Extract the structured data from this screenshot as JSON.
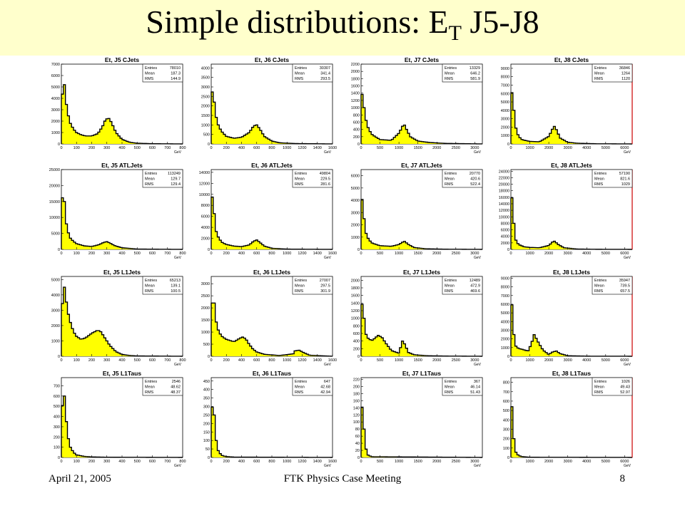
{
  "title": {
    "main": "Simple distributions: E",
    "sub": "T",
    "tail": " J5-J8"
  },
  "footer": {
    "date": "April 21, 2005",
    "center": "FTK Physics Case Meeting",
    "page": "8"
  },
  "colors": {
    "fill": "#ffff00",
    "line": "#000000",
    "bg": "#ffffcc",
    "accent_edge": "#cc0000"
  },
  "chart_data": [
    {
      "type": "area",
      "title": "Et, J5 CJets",
      "entries": "78010",
      "mean": "187.3",
      "rms": "144.9",
      "xlim": [
        0,
        800
      ],
      "ylim": [
        0,
        7000
      ],
      "xticks": [
        0,
        100,
        200,
        300,
        400,
        500,
        600,
        700,
        800
      ],
      "yticks": [
        0,
        1000,
        2000,
        3000,
        4000,
        5000,
        6000,
        7000
      ],
      "xunit": "GeV",
      "x": [
        0,
        10,
        20,
        30,
        40,
        60,
        80,
        100,
        130,
        160,
        200,
        240,
        270,
        290,
        310,
        330,
        360,
        400,
        450,
        500,
        600,
        800
      ],
      "y": [
        300,
        6400,
        5200,
        3800,
        2800,
        1800,
        1300,
        1000,
        800,
        700,
        700,
        900,
        1500,
        2100,
        2300,
        1900,
        1000,
        400,
        150,
        60,
        20,
        0
      ]
    },
    {
      "type": "area",
      "title": "Et, J6 CJets",
      "entries": "30307",
      "mean": "341.4",
      "rms": "293.5",
      "xlim": [
        0,
        1600
      ],
      "ylim": [
        0,
        4200
      ],
      "xticks": [
        0,
        200,
        400,
        600,
        800,
        1000,
        1200,
        1400,
        1600
      ],
      "yticks": [
        0,
        500,
        1000,
        1500,
        2000,
        2500,
        3000,
        3500,
        4000
      ],
      "xunit": "GeV",
      "x": [
        0,
        20,
        40,
        60,
        100,
        150,
        200,
        300,
        400,
        500,
        560,
        600,
        640,
        700,
        800,
        900,
        1100,
        1600
      ],
      "y": [
        200,
        4000,
        2200,
        1500,
        900,
        600,
        400,
        300,
        350,
        600,
        950,
        1000,
        800,
        400,
        150,
        60,
        20,
        0
      ]
    },
    {
      "type": "area",
      "title": "Et, J7 CJets",
      "entries": "13329",
      "mean": "646.2",
      "rms": "581.9",
      "xlim": [
        0,
        3200
      ],
      "ylim": [
        0,
        2200
      ],
      "xticks": [
        0,
        500,
        1000,
        1500,
        2000,
        2500,
        3000
      ],
      "yticks": [
        0,
        200,
        400,
        600,
        800,
        1000,
        1200,
        1400,
        1600,
        1800,
        2000,
        2200
      ],
      "xunit": "GeV",
      "x": [
        0,
        40,
        80,
        120,
        200,
        300,
        500,
        800,
        1000,
        1100,
        1150,
        1200,
        1300,
        1500,
        1800,
        2200,
        3200
      ],
      "y": [
        100,
        2000,
        1000,
        700,
        400,
        250,
        120,
        100,
        300,
        500,
        520,
        400,
        200,
        80,
        40,
        15,
        0
      ]
    },
    {
      "type": "area",
      "title": "Et, J8 CJets",
      "entries": "36846",
      "mean": "1264",
      "rms": "1120",
      "xlim": [
        0,
        6400
      ],
      "ylim": [
        0,
        9500
      ],
      "xticks": [
        0,
        1000,
        2000,
        3000,
        4000,
        5000,
        6000
      ],
      "yticks": [
        0,
        1000,
        2000,
        3000,
        4000,
        5000,
        6000,
        7000,
        8000,
        9000
      ],
      "xunit": "GeV",
      "x": [
        0,
        80,
        160,
        250,
        400,
        600,
        1000,
        1500,
        2000,
        2200,
        2300,
        2400,
        2600,
        3000,
        3500,
        4500,
        6400
      ],
      "y": [
        300,
        9000,
        4000,
        2000,
        900,
        500,
        300,
        250,
        900,
        1800,
        2100,
        1700,
        700,
        200,
        80,
        20,
        0
      ]
    },
    {
      "type": "area",
      "title": "Et, J5 ATLJets",
      "entries": "113249",
      "mean": "129.7",
      "rms": "129.4",
      "xlim": [
        0,
        800
      ],
      "ylim": [
        0,
        25000
      ],
      "xticks": [
        0,
        100,
        200,
        300,
        400,
        500,
        600,
        700,
        800
      ],
      "yticks": [
        0,
        5000,
        10000,
        15000,
        20000,
        25000
      ],
      "xunit": "GeV",
      "x": [
        0,
        10,
        20,
        30,
        40,
        60,
        80,
        100,
        150,
        200,
        250,
        280,
        300,
        320,
        350,
        400,
        500,
        800
      ],
      "y": [
        500,
        24000,
        15000,
        9000,
        6000,
        3500,
        2500,
        1800,
        1100,
        900,
        1500,
        2200,
        2400,
        2000,
        1200,
        500,
        100,
        0
      ]
    },
    {
      "type": "area",
      "title": "Et, J6 ATLJets",
      "entries": "49804",
      "mean": "229.5",
      "rms": "281.6",
      "xlim": [
        0,
        1600
      ],
      "ylim": [
        0,
        14500
      ],
      "xticks": [
        0,
        200,
        400,
        600,
        800,
        1000,
        1200,
        1400,
        1600
      ],
      "yticks": [
        0,
        2000,
        4000,
        6000,
        8000,
        10000,
        12000,
        14000
      ],
      "xunit": "GeV",
      "x": [
        0,
        20,
        40,
        60,
        100,
        150,
        200,
        300,
        400,
        500,
        560,
        600,
        640,
        700,
        800,
        1000,
        1600
      ],
      "y": [
        500,
        14000,
        6500,
        3500,
        2000,
        1200,
        900,
        600,
        500,
        800,
        1500,
        1700,
        1300,
        600,
        200,
        50,
        0
      ]
    },
    {
      "type": "area",
      "title": "Et, J7 ATLJets",
      "entries": "20770",
      "mean": "420.6",
      "rms": "522.4",
      "xlim": [
        0,
        3200
      ],
      "ylim": [
        0,
        6500
      ],
      "xticks": [
        0,
        500,
        1000,
        1500,
        2000,
        2500,
        3000
      ],
      "yticks": [
        0,
        1000,
        2000,
        3000,
        4000,
        5000,
        6000
      ],
      "xunit": "GeV",
      "x": [
        0,
        40,
        80,
        120,
        200,
        300,
        500,
        800,
        1000,
        1100,
        1150,
        1250,
        1400,
        1700,
        2200,
        3200
      ],
      "y": [
        200,
        6000,
        2500,
        1400,
        800,
        500,
        300,
        250,
        400,
        600,
        650,
        400,
        150,
        50,
        15,
        0
      ]
    },
    {
      "type": "area",
      "title": "Et, J8 ATLJets",
      "entries": "57190",
      "mean": "821.6",
      "rms": "1029",
      "xlim": [
        0,
        6400
      ],
      "ylim": [
        0,
        24500
      ],
      "xticks": [
        0,
        1000,
        2000,
        3000,
        4000,
        5000,
        6000
      ],
      "yticks": [
        0,
        2000,
        4000,
        6000,
        8000,
        10000,
        12000,
        14000,
        16000,
        18000,
        20000,
        22000,
        24000
      ],
      "xunit": "GeV",
      "x": [
        0,
        80,
        160,
        250,
        400,
        700,
        1000,
        1500,
        2000,
        2200,
        2300,
        2500,
        2800,
        3500,
        4500,
        6400
      ],
      "y": [
        500,
        23500,
        8000,
        3000,
        1500,
        800,
        600,
        500,
        1200,
        2300,
        2500,
        1500,
        500,
        100,
        30,
        0
      ]
    },
    {
      "type": "area",
      "title": "Et, J5 L1Jets",
      "entries": "65213",
      "mean": "139.1",
      "rms": "100.5",
      "xlim": [
        0,
        800
      ],
      "ylim": [
        0,
        5200
      ],
      "xticks": [
        0,
        100,
        200,
        300,
        400,
        500,
        600,
        700,
        800
      ],
      "yticks": [
        0,
        1000,
        2000,
        3000,
        4000,
        5000
      ],
      "xunit": "GeV",
      "x": [
        0,
        10,
        20,
        30,
        40,
        60,
        80,
        100,
        130,
        160,
        200,
        240,
        260,
        280,
        320,
        360,
        400,
        450,
        500,
        800
      ],
      "y": [
        300,
        5000,
        4500,
        3800,
        3000,
        2200,
        1600,
        1300,
        1100,
        1200,
        1500,
        1700,
        1600,
        1300,
        700,
        300,
        120,
        50,
        20,
        0
      ]
    },
    {
      "type": "area",
      "title": "Et, J6 L1Jets",
      "entries": "27007",
      "mean": "297.5",
      "rms": "301.9",
      "xlim": [
        0,
        1600
      ],
      "ylim": [
        0,
        3300
      ],
      "xticks": [
        0,
        200,
        400,
        600,
        800,
        1000,
        1200,
        1400,
        1600
      ],
      "yticks": [
        0,
        500,
        1000,
        1500,
        2000,
        2500,
        3000
      ],
      "xunit": "GeV",
      "x": [
        0,
        20,
        40,
        60,
        100,
        150,
        200,
        300,
        380,
        420,
        460,
        500,
        550,
        600,
        700,
        900,
        1080,
        1100,
        1160,
        1220,
        1300,
        1600
      ],
      "y": [
        200,
        3200,
        2200,
        1500,
        1000,
        800,
        700,
        600,
        750,
        800,
        700,
        500,
        300,
        180,
        80,
        30,
        100,
        220,
        250,
        150,
        40,
        0
      ]
    },
    {
      "type": "area",
      "title": "Et, J7 L1Jets",
      "entries": "12489",
      "mean": "472.9",
      "rms": "469.6",
      "xlim": [
        0,
        3200
      ],
      "ylim": [
        0,
        2100
      ],
      "xticks": [
        0,
        500,
        1000,
        1500,
        2000,
        2500,
        3000
      ],
      "yticks": [
        0,
        200,
        400,
        600,
        800,
        1000,
        1200,
        1400,
        1600,
        1800,
        2000
      ],
      "xunit": "GeV",
      "x": [
        0,
        40,
        80,
        120,
        200,
        300,
        450,
        550,
        650,
        800,
        1000,
        1060,
        1100,
        1160,
        1250,
        1400,
        1700,
        2200,
        3200
      ],
      "y": [
        100,
        2000,
        1000,
        600,
        450,
        420,
        550,
        500,
        350,
        150,
        80,
        300,
        420,
        300,
        100,
        40,
        15,
        5,
        0
      ]
    },
    {
      "type": "area",
      "title": "Et, J8 L1Jets",
      "entries": "35947",
      "mean": "739.5",
      "rms": "657.5",
      "xlim": [
        0,
        6400
      ],
      "ylim": [
        0,
        9200
      ],
      "xticks": [
        0,
        1000,
        2000,
        3000,
        4000,
        5000,
        6000
      ],
      "yticks": [
        0,
        1000,
        2000,
        3000,
        4000,
        5000,
        6000,
        7000,
        8000,
        9000
      ],
      "xunit": "GeV",
      "x": [
        0,
        80,
        160,
        250,
        400,
        600,
        900,
        1100,
        1200,
        1300,
        1500,
        1700,
        2000,
        2200,
        2400,
        2600,
        3000,
        4000,
        6400
      ],
      "y": [
        200,
        8800,
        2500,
        1200,
        900,
        800,
        600,
        1500,
        2600,
        2200,
        1400,
        700,
        200,
        500,
        600,
        300,
        60,
        10,
        0
      ]
    },
    {
      "type": "area",
      "title": "Et, J5 L1Taus",
      "entries": "2546",
      "mean": "48.62",
      "rms": "48.37",
      "xlim": [
        0,
        800
      ],
      "ylim": [
        0,
        780
      ],
      "xticks": [
        0,
        100,
        200,
        300,
        400,
        500,
        600,
        700,
        800
      ],
      "yticks": [
        0,
        100,
        200,
        300,
        400,
        500,
        600,
        700
      ],
      "xunit": "GeV",
      "x": [
        0,
        10,
        20,
        30,
        40,
        50,
        60,
        80,
        100,
        150,
        200,
        300,
        800
      ],
      "y": [
        20,
        750,
        600,
        400,
        250,
        150,
        100,
        50,
        25,
        10,
        5,
        2,
        0
      ]
    },
    {
      "type": "area",
      "title": "Et, J6 L1Taus",
      "entries": "647",
      "mean": "42.68",
      "rms": "42.94",
      "xlim": [
        0,
        1600
      ],
      "ylim": [
        0,
        470
      ],
      "xticks": [
        0,
        200,
        400,
        600,
        800,
        1000,
        1200,
        1400,
        1600
      ],
      "yticks": [
        0,
        50,
        100,
        150,
        200,
        250,
        300,
        350,
        400,
        450
      ],
      "xunit": "GeV",
      "x": [
        0,
        20,
        40,
        60,
        80,
        100,
        150,
        200,
        300,
        1600
      ],
      "y": [
        10,
        440,
        250,
        120,
        60,
        30,
        10,
        5,
        2,
        0
      ]
    },
    {
      "type": "area",
      "title": "Et, J7 L1Taus",
      "entries": "367",
      "mean": "46.14",
      "rms": "51.43",
      "xlim": [
        0,
        3200
      ],
      "ylim": [
        0,
        225
      ],
      "xticks": [
        0,
        500,
        1000,
        1500,
        2000,
        2500,
        3000
      ],
      "yticks": [
        0,
        20,
        40,
        60,
        80,
        100,
        120,
        140,
        160,
        180,
        200,
        220
      ],
      "xunit": "GeV",
      "x": [
        0,
        40,
        80,
        120,
        160,
        200,
        300,
        3200
      ],
      "y": [
        5,
        210,
        80,
        30,
        10,
        5,
        2,
        0
      ]
    },
    {
      "type": "area",
      "title": "Et, J8 L1Taus",
      "entries": "1026",
      "mean": "49.43",
      "rms": "52.97",
      "xlim": [
        0,
        6400
      ],
      "ylim": [
        0,
        850
      ],
      "xticks": [
        0,
        1000,
        2000,
        3000,
        4000,
        5000,
        6000
      ],
      "yticks": [
        0,
        100,
        200,
        300,
        400,
        500,
        600,
        700,
        800
      ],
      "xunit": "GeV",
      "x": [
        0,
        80,
        160,
        250,
        400,
        600,
        1000,
        6400
      ],
      "y": [
        20,
        800,
        200,
        60,
        20,
        8,
        2,
        0
      ]
    }
  ]
}
